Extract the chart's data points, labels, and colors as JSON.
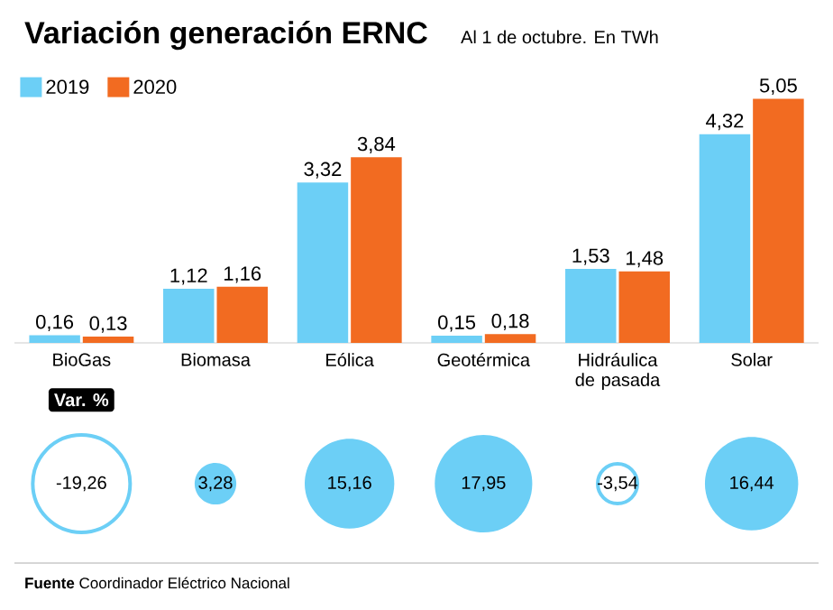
{
  "chart_data": [
    {
      "type": "bar",
      "title": "Variación generación ERNC",
      "subtitle": "Al 1 de octubre. En TWh",
      "categories": [
        "BioGas",
        "Biomasa",
        "Eólica",
        "Geotérmica",
        "Hidráulica de pasada",
        "Solar"
      ],
      "series": [
        {
          "name": "2019",
          "color": "#6ccff6",
          "values": [
            0.16,
            1.12,
            3.32,
            0.15,
            1.53,
            4.32
          ],
          "value_labels": [
            "0,16",
            "1,12",
            "3,32",
            "0,15",
            "1,53",
            "4,32"
          ]
        },
        {
          "name": "2020",
          "color": "#f26b21",
          "values": [
            0.13,
            1.16,
            3.84,
            0.18,
            1.48,
            5.05
          ],
          "value_labels": [
            "0,13",
            "1,16",
            "3,84",
            "0,18",
            "1,48",
            "5,05"
          ]
        }
      ],
      "ylim": [
        0,
        5.6
      ],
      "tick_labels": "x",
      "legend": "top left",
      "annotations": [
        "**Fuente** Coordinador Eléctrico Nacional"
      ]
    },
    {
      "type": "other",
      "title": "Var. %",
      "categories": [
        null,
        null,
        null,
        null,
        null,
        null
      ],
      "values": [
        -19.26,
        3.28,
        15.16,
        17.95,
        -3.54,
        16.44
      ],
      "value_labels": [
        "-19,26",
        "3,28",
        "15,16",
        "17,95",
        "-3,54",
        "16,44"
      ],
      "color": "#6ccff6"
    }
  ]
}
